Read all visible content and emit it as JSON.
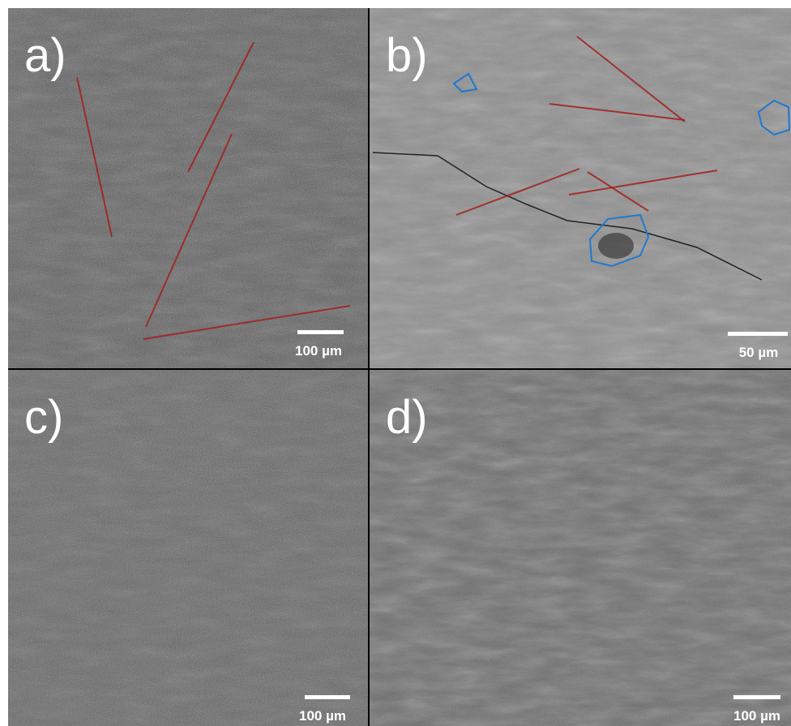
{
  "panels": [
    {
      "label": "a)",
      "scale": "100 µm"
    },
    {
      "label": "b)",
      "scale": "50 µm"
    },
    {
      "label": "c)",
      "scale": "100 µm"
    },
    {
      "label": "d)",
      "scale": "100 µm"
    }
  ]
}
